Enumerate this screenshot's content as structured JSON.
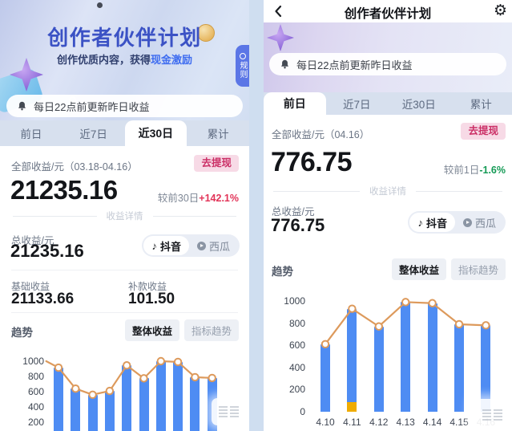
{
  "icons": {
    "note": "♪",
    "gear": "⚙",
    "bell": "bell-icon",
    "back": "chevron-left-icon",
    "xigua": "play-circle-icon"
  },
  "colors": {
    "accent_blue": "#3b52c5",
    "highlight_blue": "#3e6cf0",
    "up_red": "#e23458",
    "down_green": "#149a55",
    "withdraw_pink_bg": "#f7dae6",
    "withdraw_pink_text": "#cb2f66",
    "bar_blue": "#4e8cf3",
    "line_orange": "#dd9a5c",
    "secondary_yellow": "#efac02"
  },
  "left_panel": {
    "banner": {
      "title": "创作者伙伴计划",
      "subtitle_prefix": "创作优质内容，获得",
      "subtitle_highlight": "现金激励",
      "rules_badge": "规则"
    },
    "notice": "每日22点前更新昨日收益",
    "tabs": [
      "前日",
      "近7日",
      "近30日",
      "累计"
    ],
    "active_tab": "近30日",
    "summary": {
      "period_label": "全部收益/元（03.18-04.16）",
      "withdraw_label": "去提现",
      "amount": "21235.16",
      "compare_label": "较前30日",
      "compare_value": "+142.1%"
    },
    "details_divider": "收益详情",
    "total": {
      "label": "总收益/元",
      "amount": "21235.16"
    },
    "platforms": {
      "douyin": "抖音",
      "xigua": "西瓜",
      "active": "抖音"
    },
    "breakdown": {
      "col1_label": "基础收益",
      "col1_value": "21133.66",
      "col2_label": "补款收益",
      "col2_value": "101.50"
    },
    "trend": {
      "label": "趋势",
      "overall_button": "整体收益",
      "metric_button": "指标趋势",
      "active": "整体收益"
    }
  },
  "right_panel": {
    "nav_title": "创作者伙伴计划",
    "notice": "每日22点前更新昨日收益",
    "tabs": [
      "前日",
      "近7日",
      "近30日",
      "累计"
    ],
    "active_tab": "前日",
    "summary": {
      "period_label": "全部收益/元（04.16）",
      "withdraw_label": "去提现",
      "amount": "776.75",
      "compare_label": "较前1日",
      "compare_value": "-1.6%"
    },
    "details_divider": "收益详情",
    "total": {
      "label": "总收益/元",
      "amount": "776.75"
    },
    "platforms": {
      "douyin": "抖音",
      "xigua": "西瓜",
      "active": "抖音"
    },
    "trend": {
      "label": "趋势",
      "overall_button": "整体收益",
      "metric_button": "指标趋势",
      "active": "整体收益"
    }
  },
  "chart_data": [
    {
      "type": "bar+line",
      "panel": "left",
      "title": "趋势 - 整体收益 (近30日, 可见部分)",
      "categories": [
        "",
        "",
        "",
        "",
        "",
        "",
        "",
        "",
        "",
        ""
      ],
      "values": [
        915,
        640,
        560,
        610,
        945,
        775,
        1000,
        990,
        790,
        780
      ],
      "lead_in": 1000,
      "yticks": [
        1000,
        800,
        600,
        400,
        200
      ],
      "ylim": [
        0,
        1000
      ],
      "grid": false,
      "legend": "none",
      "bar_color": "#4e8cf3",
      "line_color": "#dd9a5c"
    },
    {
      "type": "bar+line",
      "panel": "right",
      "title": "趋势 - 整体收益 (前日视图)",
      "categories": [
        "4.10",
        "4.11",
        "4.12",
        "4.13",
        "4.14",
        "4.15",
        "4.16"
      ],
      "values": [
        610,
        930,
        770,
        990,
        980,
        790,
        780
      ],
      "secondary_segment": {
        "category": "4.11",
        "value": 90,
        "color": "#efac02"
      },
      "yticks": [
        1000,
        800,
        600,
        400,
        200,
        0
      ],
      "ylim": [
        0,
        1000
      ],
      "grid": false,
      "legend": "none",
      "bar_color": "#4e8cf3",
      "line_color": "#dd9a5c"
    }
  ]
}
